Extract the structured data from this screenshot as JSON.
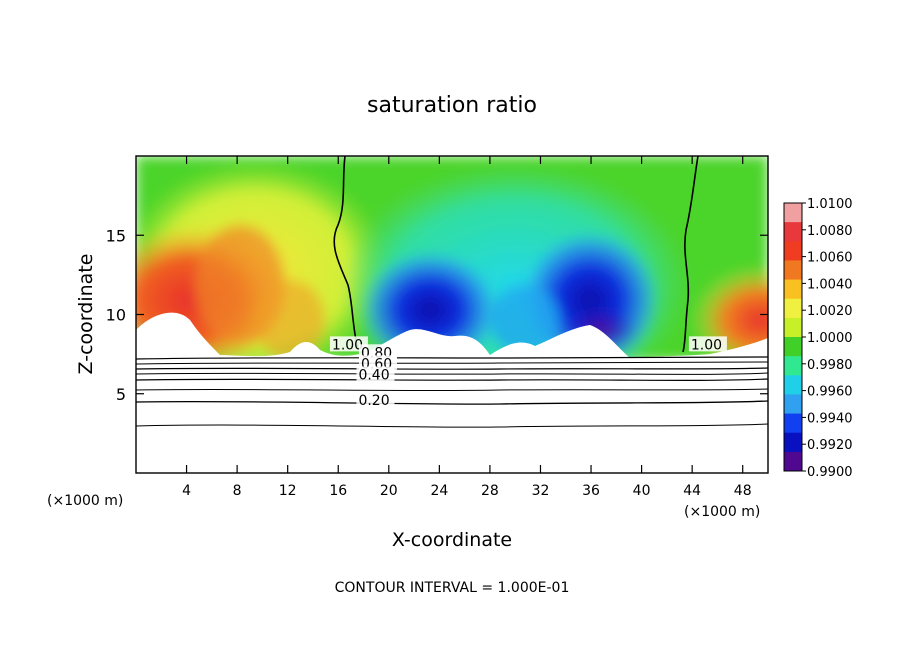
{
  "chart_data": {
    "type": "heatmap",
    "title": "saturation ratio",
    "xlabel": "X-coordinate",
    "ylabel": "Z-coordinate",
    "x_unit_left": "(×1000 m)",
    "x_unit_right": "(×1000 m)",
    "footer": "CONTOUR INTERVAL = 1.000E-01",
    "xlim": [
      0,
      50
    ],
    "ylim": [
      0,
      20
    ],
    "x_ticks": [
      "4",
      "8",
      "12",
      "16",
      "20",
      "24",
      "28",
      "32",
      "36",
      "40",
      "44",
      "48"
    ],
    "y_ticks": [
      "5",
      "10",
      "15"
    ],
    "colorbar": {
      "range": [
        0.99,
        1.01
      ],
      "labels": [
        "1.0100",
        "1.0080",
        "1.0060",
        "1.0040",
        "1.0020",
        "1.0000",
        "0.9980",
        "0.9960",
        "0.9940",
        "0.9920",
        "0.9900"
      ],
      "colors": [
        "#f0a0a0",
        "#e8383c",
        "#f03c20",
        "#f07820",
        "#f8c020",
        "#f0f040",
        "#c8f028",
        "#40d028",
        "#30e890",
        "#20d0e8",
        "#30a0f0",
        "#1040f0",
        "#0810c0",
        "#500890"
      ]
    },
    "contour_labels": [
      {
        "text": "1.00",
        "x": 15.5,
        "y": 7.8
      },
      {
        "text": "0.80",
        "x": 17.8,
        "y": 7.3
      },
      {
        "text": "0.60",
        "x": 17.8,
        "y": 6.6
      },
      {
        "text": "0.40",
        "x": 17.6,
        "y": 5.9
      },
      {
        "text": "0.20",
        "x": 17.6,
        "y": 4.3
      },
      {
        "text": "1.00",
        "x": 43.9,
        "y": 7.8
      }
    ],
    "contour_levels": [
      0.2,
      0.4,
      0.6,
      0.8,
      1.0
    ],
    "contour_interval": 0.1
  }
}
